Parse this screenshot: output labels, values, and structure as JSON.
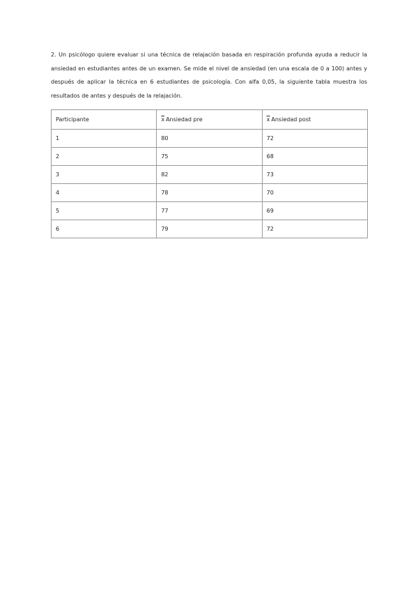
{
  "paragraph": "2. Un psicólogo quiere evaluar si una técnica de relajación basada en respiración profunda ayuda a reducir la ansiedad en estudiantes antes de un examen. Se mide el nivel de ansiedad (en una escala de 0 a 100) antes y después de aplicar la técnica en 6 estudiantes de psicología. Con alfa 0,05, la siguiente tabla muestra los resultados de antes y después de la relajación.",
  "table": {
    "symbol": "x",
    "headers": [
      "Participante",
      "Ansiedad pre",
      "Ansiedad post"
    ],
    "rows": [
      [
        "1",
        "80",
        "72"
      ],
      [
        "2",
        "75",
        "68"
      ],
      [
        "3",
        "82",
        "73"
      ],
      [
        "4",
        "78",
        "70"
      ],
      [
        "5",
        "77",
        "69"
      ],
      [
        "6",
        "79",
        "72"
      ]
    ]
  }
}
